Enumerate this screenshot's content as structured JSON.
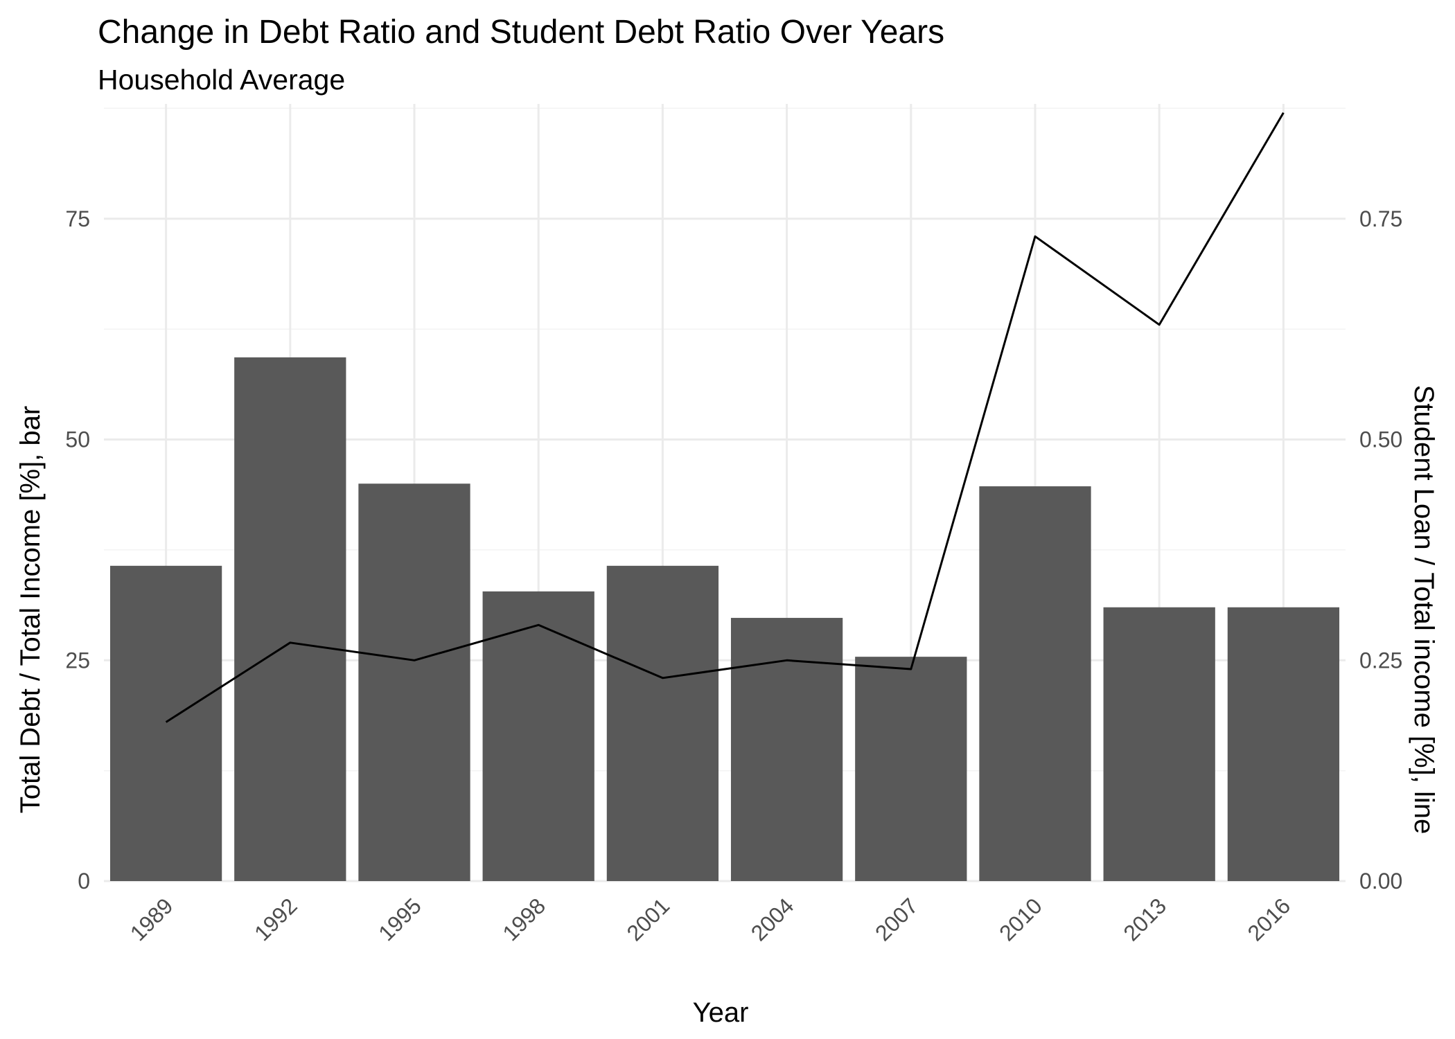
{
  "chart_data": {
    "type": "bar",
    "title": "Change in Debt Ratio and Student Debt Ratio Over Years",
    "subtitle": "Household Average",
    "xlabel": "Year",
    "ylabel": "Total Debt / Total Income [%], bar",
    "y2label": "Student Loan / Total income [%], line",
    "categories": [
      "1989",
      "1992",
      "1995",
      "1998",
      "2001",
      "2004",
      "2007",
      "2010",
      "2013",
      "2016"
    ],
    "series": [
      {
        "type": "bar",
        "axis": "left",
        "values": [
          35.7,
          59.3,
          45.0,
          32.8,
          35.7,
          29.8,
          25.4,
          44.7,
          31.0,
          31.0
        ]
      },
      {
        "type": "line",
        "axis": "right",
        "values": [
          0.18,
          0.27,
          0.25,
          0.29,
          0.23,
          0.25,
          0.24,
          0.73,
          0.63,
          0.87
        ]
      }
    ],
    "ylim": [
      0,
      88
    ],
    "y2lim": [
      0,
      0.88
    ],
    "yticks": [
      0,
      25,
      50,
      75
    ],
    "ytick_labels": [
      "0",
      "25",
      "50",
      "75"
    ],
    "y2ticks": [
      0,
      0.25,
      0.5,
      0.75
    ],
    "y2tick_labels": [
      "0.00",
      "0.25",
      "0.50",
      "0.75"
    ],
    "grid": true,
    "legend": "none",
    "colors": {
      "bar": "#595959",
      "line": "#000000",
      "grid": "#ebebeb"
    }
  }
}
